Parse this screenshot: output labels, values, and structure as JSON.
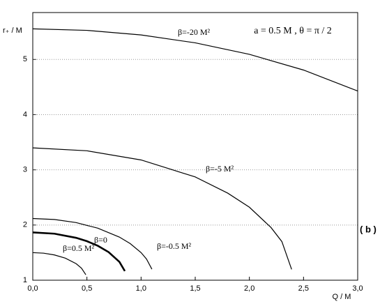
{
  "chart_data": {
    "type": "line",
    "annotation": "a = 0.5 M ,  θ = π / 2",
    "panel_label": "( b )",
    "x_label": "Q / M",
    "y_label": "r₊  / M",
    "xlim": [
      0,
      3
    ],
    "ylim": [
      1,
      5.85
    ],
    "xticks": [
      {
        "value": 0,
        "label": "0,0"
      },
      {
        "value": 0.5,
        "label": "0,5"
      },
      {
        "value": 1,
        "label": "1,0"
      },
      {
        "value": 1.5,
        "label": "1,5"
      },
      {
        "value": 2,
        "label": "2,0"
      },
      {
        "value": 2.5,
        "label": "2,5"
      },
      {
        "value": 3,
        "label": "3,0"
      }
    ],
    "yticks": [
      1,
      2,
      3,
      4,
      5
    ],
    "grid": true,
    "series": [
      {
        "name": "β=-20 M²",
        "color": "#000000",
        "x": [
          0,
          0.5,
          1,
          1.5,
          2,
          2.5,
          3
        ],
        "values": [
          5.555,
          5.527,
          5.444,
          5.301,
          5.093,
          4.808,
          4.428
        ]
      },
      {
        "name": "β=-5 M²",
        "color": "#000000",
        "x": [
          0,
          0.5,
          1,
          1.5,
          1.8,
          2,
          2.2,
          2.3,
          2.39
        ],
        "values": [
          3.398,
          3.345,
          3.179,
          2.871,
          2.578,
          2.323,
          1.954,
          1.7,
          1.196
        ]
      },
      {
        "name": "β=-0.5 M²",
        "color": "#000000",
        "x": [
          0,
          0.2,
          0.4,
          0.6,
          0.8,
          0.9,
          1,
          1.05,
          1.1
        ],
        "values": [
          2.118,
          2.1,
          2.044,
          1.943,
          1.781,
          1.663,
          1.5,
          1.384,
          1.2
        ]
      },
      {
        "name": "β=0",
        "color": "#000000",
        "x": [
          0,
          0.2,
          0.4,
          0.5,
          0.6,
          0.7,
          0.8,
          0.85
        ],
        "values": [
          1.866,
          1.843,
          1.768,
          1.707,
          1.624,
          1.51,
          1.332,
          1.166
        ]
      },
      {
        "name": "β=0.5 M²",
        "color": "#000000",
        "x": [
          0,
          0.1,
          0.2,
          0.3,
          0.4,
          0.45,
          0.49
        ],
        "values": [
          1.5,
          1.49,
          1.458,
          1.4,
          1.3,
          1.218,
          1.099
        ]
      }
    ]
  }
}
